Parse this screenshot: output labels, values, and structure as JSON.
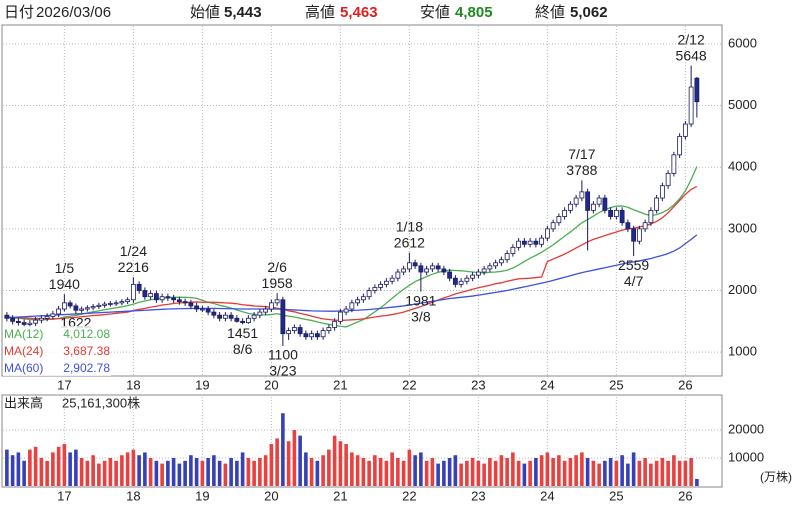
{
  "chart_data": {
    "type": "candlestick",
    "header": {
      "date_label": "日付",
      "date": "2026/03/06",
      "open_label": "始値",
      "open": "5,443",
      "high_label": "高値",
      "high": "5,463",
      "low_label": "安値",
      "low": "4,805",
      "close_label": "終値",
      "close": "5,062"
    },
    "categories": [
      null,
      null,
      null,
      null,
      null,
      null,
      null,
      null,
      null,
      null,
      "17",
      null,
      null,
      null,
      null,
      null,
      null,
      null,
      null,
      null,
      null,
      null,
      "18",
      null,
      null,
      null,
      null,
      null,
      null,
      null,
      null,
      null,
      null,
      null,
      "19",
      null,
      null,
      null,
      null,
      null,
      null,
      null,
      null,
      null,
      null,
      null,
      "20",
      null,
      null,
      null,
      null,
      null,
      null,
      null,
      null,
      null,
      null,
      null,
      "21",
      null,
      null,
      null,
      null,
      null,
      null,
      null,
      null,
      null,
      null,
      null,
      "22",
      null,
      null,
      null,
      null,
      null,
      null,
      null,
      null,
      null,
      null,
      null,
      "23",
      null,
      null,
      null,
      null,
      null,
      null,
      null,
      null,
      null,
      null,
      null,
      "24",
      null,
      null,
      null,
      null,
      null,
      null,
      null,
      null,
      null,
      null,
      null,
      "25",
      null,
      null,
      null,
      null,
      null,
      null,
      null,
      null,
      null,
      null,
      null,
      "26",
      null,
      null
    ],
    "open": [
      1600,
      1550,
      1500,
      1480,
      1450,
      1470,
      1520,
      1550,
      1580,
      1620,
      1700,
      1800,
      1750,
      1680,
      1700,
      1720,
      1740,
      1760,
      1780,
      1790,
      1800,
      1820,
      1850,
      2100,
      2000,
      1900,
      1950,
      1850,
      1900,
      1880,
      1850,
      1820,
      1800,
      1750,
      1700,
      1700,
      1650,
      1600,
      1550,
      1600,
      1550,
      1500,
      1480,
      1550,
      1600,
      1650,
      1700,
      1800,
      1850,
      1300,
      1350,
      1400,
      1300,
      1250,
      1300,
      1250,
      1350,
      1400,
      1500,
      1650,
      1700,
      1800,
      1850,
      1900,
      2000,
      2050,
      2100,
      2150,
      2200,
      2300,
      2350,
      2450,
      2400,
      2300,
      2350,
      2400,
      2350,
      2300,
      2200,
      2100,
      2150,
      2200,
      2250,
      2300,
      2350,
      2400,
      2450,
      2500,
      2600,
      2700,
      2800,
      2750,
      2800,
      2750,
      2850,
      3000,
      3100,
      3200,
      3300,
      3400,
      3500,
      3600,
      3300,
      3400,
      3500,
      3300,
      3200,
      3300,
      3100,
      3000,
      2800,
      3000,
      3100,
      3300,
      3500,
      3700,
      3900,
      4200,
      4500,
      4700,
      5443
    ],
    "high": [
      1650,
      1600,
      1550,
      1530,
      1520,
      1570,
      1600,
      1630,
      1670,
      1750,
      1940,
      1840,
      1790,
      1740,
      1760,
      1780,
      1800,
      1820,
      1830,
      1840,
      1860,
      1890,
      2216,
      2150,
      2050,
      2000,
      2000,
      1950,
      1950,
      1930,
      1900,
      1870,
      1850,
      1800,
      1750,
      1750,
      1700,
      1650,
      1650,
      1650,
      1600,
      1550,
      1600,
      1650,
      1700,
      1750,
      1850,
      1958,
      1900,
      1400,
      1450,
      1450,
      1350,
      1350,
      1350,
      1400,
      1450,
      1550,
      1700,
      1750,
      1850,
      1900,
      1950,
      2050,
      2100,
      2150,
      2200,
      2250,
      2350,
      2400,
      2612,
      2500,
      2450,
      2400,
      2450,
      2450,
      2400,
      2350,
      2250,
      2200,
      2250,
      2300,
      2350,
      2400,
      2450,
      2500,
      2550,
      2650,
      2750,
      2850,
      2850,
      2850,
      2850,
      2900,
      3050,
      3150,
      3250,
      3350,
      3450,
      3550,
      3788,
      3650,
      3450,
      3550,
      3550,
      3350,
      3350,
      3350,
      3150,
      3050,
      3050,
      3150,
      3350,
      3550,
      3750,
      3950,
      4250,
      4550,
      4750,
      5648,
      5463
    ],
    "low": [
      1500,
      1450,
      1430,
      1400,
      1400,
      1420,
      1470,
      1500,
      1530,
      1570,
      1660,
      1710,
      1622,
      1640,
      1660,
      1680,
      1700,
      1720,
      1740,
      1750,
      1760,
      1780,
      1800,
      1950,
      1850,
      1850,
      1800,
      1800,
      1830,
      1800,
      1770,
      1750,
      1700,
      1650,
      1650,
      1600,
      1550,
      1500,
      1500,
      1500,
      1480,
      1451,
      1460,
      1500,
      1550,
      1600,
      1650,
      1750,
      1100,
      1200,
      1300,
      1250,
      1200,
      1200,
      1200,
      1200,
      1300,
      1350,
      1450,
      1600,
      1650,
      1750,
      1800,
      1850,
      1950,
      2000,
      2050,
      2100,
      2150,
      2250,
      2300,
      2350,
      1981,
      2250,
      2300,
      2300,
      2250,
      2150,
      2050,
      2050,
      2100,
      2150,
      2200,
      2250,
      2300,
      2350,
      2400,
      2450,
      2550,
      2650,
      2700,
      2700,
      2700,
      2700,
      2800,
      2950,
      3050,
      3150,
      3250,
      3350,
      3450,
      2650,
      3250,
      3350,
      3250,
      3150,
      3150,
      3050,
      2950,
      2559,
      2750,
      2950,
      3050,
      3250,
      3450,
      3650,
      3850,
      4150,
      4450,
      4650,
      4805
    ],
    "close": [
      1550,
      1500,
      1480,
      1450,
      1470,
      1520,
      1550,
      1580,
      1620,
      1700,
      1800,
      1750,
      1680,
      1700,
      1720,
      1740,
      1760,
      1780,
      1790,
      1800,
      1820,
      1850,
      2100,
      2000,
      1900,
      1950,
      1850,
      1900,
      1880,
      1850,
      1820,
      1800,
      1750,
      1700,
      1700,
      1650,
      1600,
      1550,
      1600,
      1550,
      1500,
      1480,
      1550,
      1600,
      1650,
      1700,
      1800,
      1850,
      1300,
      1350,
      1400,
      1300,
      1250,
      1300,
      1250,
      1350,
      1400,
      1500,
      1650,
      1700,
      1800,
      1850,
      1900,
      2000,
      2050,
      2100,
      2150,
      2200,
      2300,
      2350,
      2450,
      2400,
      2300,
      2350,
      2400,
      2350,
      2300,
      2200,
      2100,
      2150,
      2200,
      2250,
      2300,
      2350,
      2400,
      2450,
      2500,
      2600,
      2700,
      2800,
      2750,
      2800,
      2750,
      2850,
      3000,
      3100,
      3200,
      3300,
      3400,
      3500,
      3600,
      3300,
      3400,
      3500,
      3300,
      3200,
      3300,
      3100,
      3000,
      2800,
      3000,
      3100,
      3300,
      3500,
      3700,
      3900,
      4200,
      4500,
      4700,
      5300,
      5062
    ],
    "up_color": "#ffffff",
    "down_color": "#1f2a8a",
    "edge_color": "#1a1a60",
    "ylim": [
      630,
      6290
    ],
    "yticks": [
      1000,
      2000,
      3000,
      4000,
      5000,
      6000
    ],
    "grid": true,
    "series": [
      {
        "name": "MA(12)",
        "color": "#4caf50",
        "last_label": "4,012.08",
        "values": [
          1560,
          1555,
          1550,
          1540,
          1530,
          1525,
          1525,
          1530,
          1535,
          1545,
          1570,
          1585,
          1595,
          1615,
          1635,
          1655,
          1670,
          1690,
          1705,
          1720,
          1735,
          1755,
          1780,
          1810,
          1830,
          1850,
          1860,
          1875,
          1885,
          1890,
          1890,
          1890,
          1885,
          1875,
          1840,
          1810,
          1790,
          1760,
          1740,
          1715,
          1685,
          1655,
          1630,
          1615,
          1605,
          1605,
          1610,
          1625,
          1600,
          1585,
          1570,
          1550,
          1530,
          1515,
          1490,
          1470,
          1450,
          1435,
          1420,
          1410,
          1450,
          1490,
          1530,
          1590,
          1655,
          1720,
          1795,
          1875,
          1950,
          2020,
          2085,
          2145,
          2185,
          2225,
          2265,
          2295,
          2315,
          2330,
          2325,
          2320,
          2310,
          2300,
          2290,
          2285,
          2295,
          2300,
          2310,
          2330,
          2365,
          2415,
          2470,
          2525,
          2570,
          2620,
          2680,
          2740,
          2810,
          2880,
          2950,
          3025,
          3100,
          3150,
          3205,
          3265,
          3310,
          3345,
          3370,
          3370,
          3350,
          3310,
          3275,
          3240,
          3215,
          3230,
          3265,
          3315,
          3390,
          3490,
          3615,
          3800,
          4012.08
        ]
      },
      {
        "name": "MA(24)",
        "color": "#e53935",
        "last_label": "3,687.38",
        "values": [
          1570,
          1565,
          1560,
          1555,
          1550,
          1545,
          1540,
          1540,
          1540,
          1545,
          1550,
          1560,
          1565,
          1575,
          1585,
          1595,
          1600,
          1610,
          1620,
          1630,
          1640,
          1650,
          1675,
          1695,
          1710,
          1730,
          1745,
          1765,
          1775,
          1790,
          1800,
          1805,
          1810,
          1815,
          1810,
          1810,
          1810,
          1805,
          1800,
          1795,
          1785,
          1770,
          1760,
          1750,
          1745,
          1740,
          1725,
          1715,
          1695,
          1670,
          1655,
          1630,
          1610,
          1585,
          1560,
          1540,
          1530,
          1520,
          1515,
          1520,
          1525,
          1530,
          1540,
          1555,
          1570,
          1585,
          1595,
          1610,
          1630,
          1650,
          1680,
          1710,
          1740,
          1775,
          1810,
          1845,
          1880,
          1910,
          1945,
          1970,
          1995,
          2020,
          2045,
          2065,
          2085,
          2110,
          2125,
          2150,
          2170,
          2190,
          2195,
          2200,
          2210,
          2220,
          2470,
          2510,
          2550,
          2590,
          2640,
          2690,
          2740,
          2790,
          2830,
          2860,
          2890,
          2920,
          2950,
          2980,
          3000,
          3010,
          3030,
          3050,
          3080,
          3120,
          3180,
          3260,
          3360,
          3460,
          3560,
          3640,
          3687.38
        ]
      },
      {
        "name": "MA(60)",
        "color": "#3f51e0",
        "last_label": "2,902.78",
        "values": [
          1560,
          1565,
          1570,
          1575,
          1580,
          1585,
          1590,
          1595,
          1600,
          1605,
          1610,
          1615,
          1620,
          1625,
          1630,
          1635,
          1640,
          1645,
          1650,
          1655,
          1660,
          1665,
          1670,
          1675,
          1680,
          1685,
          1690,
          1695,
          1700,
          1702,
          1704,
          1706,
          1708,
          1710,
          1710,
          1710,
          1710,
          1708,
          1706,
          1704,
          1702,
          1700,
          1700,
          1700,
          1700,
          1700,
          1700,
          1700,
          1695,
          1690,
          1685,
          1680,
          1675,
          1670,
          1668,
          1666,
          1665,
          1665,
          1668,
          1672,
          1676,
          1680,
          1686,
          1692,
          1700,
          1710,
          1720,
          1730,
          1740,
          1750,
          1765,
          1780,
          1795,
          1810,
          1825,
          1840,
          1855,
          1870,
          1880,
          1890,
          1900,
          1910,
          1925,
          1940,
          1955,
          1970,
          1985,
          2000,
          2020,
          2040,
          2060,
          2080,
          2100,
          2120,
          2140,
          2165,
          2190,
          2215,
          2240,
          2265,
          2290,
          2310,
          2330,
          2350,
          2370,
          2390,
          2410,
          2430,
          2450,
          2465,
          2480,
          2500,
          2520,
          2545,
          2570,
          2600,
          2640,
          2690,
          2760,
          2830,
          2902.78
        ]
      }
    ],
    "annotations": [
      {
        "date": "1/5",
        "value": 1940
      },
      {
        "value": 1622
      },
      {
        "date": "1/24",
        "value": 2216
      },
      {
        "date": "8/6",
        "value": 1451
      },
      {
        "date": "2/6",
        "value": 1958
      },
      {
        "date": "3/23",
        "value": 1100
      },
      {
        "date": "1/18",
        "value": 2612
      },
      {
        "date": "3/8",
        "value": 1981
      },
      {
        "date": "7/17",
        "value": 3788
      },
      {
        "date": "4/7",
        "value": 2559
      },
      {
        "date": "2/12",
        "value": 5648
      }
    ],
    "volume": {
      "type": "bar",
      "title": "出来高",
      "total": "25,161,300株",
      "unit": "(万株)",
      "up_color": "#e8413f",
      "down_color": "#3640b8",
      "ylim": [
        0,
        31800
      ],
      "yticks": [
        10000,
        20000
      ],
      "values": [
        13000,
        11000,
        12000,
        9000,
        13000,
        14000,
        10000,
        9000,
        12000,
        14000,
        15000,
        12000,
        13000,
        10000,
        9000,
        11000,
        8000,
        9000,
        10000,
        9000,
        11000,
        12000,
        13000,
        11000,
        12000,
        10000,
        9000,
        8000,
        9000,
        10000,
        8000,
        9000,
        11000,
        10000,
        9000,
        10000,
        11000,
        9000,
        8000,
        10000,
        9000,
        12000,
        10000,
        9000,
        10000,
        11000,
        15000,
        17000,
        26000,
        16000,
        20000,
        18000,
        12000,
        10000,
        9000,
        11000,
        13000,
        18000,
        16000,
        15000,
        12000,
        11000,
        10000,
        9000,
        11000,
        10000,
        9000,
        12000,
        10000,
        9000,
        13000,
        11000,
        12000,
        9000,
        10000,
        8000,
        9000,
        10000,
        11000,
        8000,
        9000,
        10000,
        9000,
        8000,
        10000,
        9000,
        11000,
        10000,
        12000,
        9000,
        8000,
        9000,
        10000,
        11000,
        12000,
        10000,
        11000,
        9000,
        10000,
        11000,
        12000,
        10000,
        9000,
        8000,
        9000,
        10000,
        9000,
        11000,
        8000,
        12000,
        9000,
        10000,
        8000,
        9000,
        10000,
        9000,
        11000,
        9000,
        9000,
        10000,
        2516
      ]
    }
  }
}
